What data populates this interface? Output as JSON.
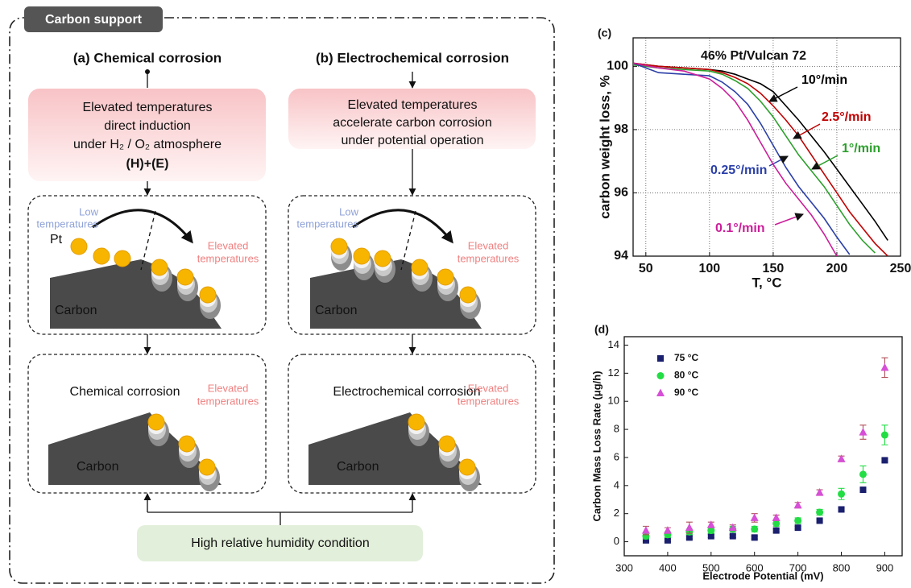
{
  "diagram": {
    "label": "Carbon support",
    "columns": [
      {
        "heading": "(a) Chemical corrosion",
        "condition": [
          "Elevated temperatures",
          "direct induction",
          "under H₂ / O₂ atmosphere",
          "(H)+(E)"
        ],
        "stage1": {
          "low": [
            "Low",
            "temperatures"
          ],
          "pt": "Pt",
          "elevated": [
            "Elevated",
            "temperatures"
          ],
          "carbon": "Carbon"
        },
        "stage2": {
          "title": "Chemical corrosion",
          "elevated": [
            "Elevated",
            "temperatures"
          ],
          "carbon": "Carbon"
        }
      },
      {
        "heading": "(b) Electrochemical corrosion",
        "condition": [
          "Elevated temperatures",
          "accelerate carbon corrosion",
          "under potential operation"
        ],
        "stage1": {
          "low": [
            "Low",
            "temperatures"
          ],
          "elevated": [
            "Elevated",
            "temperatures"
          ],
          "carbon": "Carbon"
        },
        "stage2": {
          "title": "Electrochemical corrosion",
          "elevated": [
            "Elevated",
            "temperatures"
          ],
          "carbon": "Carbon"
        }
      }
    ],
    "humidity": "High relative humidity condition"
  },
  "chart_data": [
    {
      "type": "line",
      "panel_label": "(c)",
      "title": "46% Pt/Vulcan 72",
      "x_label": "T, °C",
      "y_label": "carbon weight loss, %",
      "x": [
        40,
        60,
        80,
        100,
        110,
        120,
        130,
        140,
        150,
        160,
        170,
        180,
        190,
        200,
        210,
        220,
        230,
        240
      ],
      "series": [
        {
          "name": "10°/min",
          "color": "#000000",
          "values": [
            100.1,
            100.0,
            99.95,
            99.9,
            99.85,
            99.75,
            99.6,
            99.45,
            99.2,
            98.75,
            98.3,
            97.8,
            97.3,
            96.75,
            96.2,
            95.65,
            95.1,
            94.5
          ]
        },
        {
          "name": "2.5°/min",
          "color": "#c00000",
          "values": [
            100.1,
            100.0,
            99.95,
            99.9,
            99.8,
            99.65,
            99.45,
            99.15,
            98.75,
            98.3,
            97.8,
            97.2,
            96.6,
            96.0,
            95.4,
            94.9,
            94.4,
            94.0
          ]
        },
        {
          "name": "1°/min",
          "color": "#2ca02c",
          "values": [
            100.05,
            99.95,
            99.9,
            99.85,
            99.75,
            99.55,
            99.3,
            98.9,
            98.4,
            97.8,
            97.2,
            96.7,
            96.2,
            95.6,
            95.0,
            94.5,
            94.1,
            null
          ]
        },
        {
          "name": "0.25°/min",
          "color": "#2b3fa8",
          "values": [
            100.1,
            99.8,
            99.75,
            99.7,
            99.5,
            99.2,
            98.8,
            98.2,
            97.5,
            96.8,
            96.2,
            95.7,
            95.2,
            94.6,
            94.05,
            null,
            null,
            null
          ]
        },
        {
          "name": "0.1°/min",
          "color": "#cc1d9a",
          "values": [
            100.1,
            99.95,
            99.85,
            99.6,
            99.3,
            98.9,
            98.3,
            97.6,
            96.9,
            96.3,
            95.8,
            95.3,
            94.7,
            94.0,
            null,
            null,
            null,
            null
          ]
        }
      ],
      "xlim": [
        40,
        250
      ],
      "ylim": [
        94,
        100.9
      ],
      "xticks": [
        50,
        100,
        150,
        200,
        250
      ],
      "yticks": [
        94,
        96,
        98,
        100
      ],
      "grid": true
    },
    {
      "type": "scatter",
      "panel_label": "(d)",
      "x_label": "Electrode Potential (mV)",
      "y_label": "Carbon Mass Loss Rate (μg/h)",
      "x": [
        350,
        400,
        450,
        500,
        550,
        600,
        650,
        700,
        750,
        800,
        850,
        900
      ],
      "series": [
        {
          "name": "75 °C",
          "color": "#1a1f6e",
          "marker": "square",
          "values": [
            0.1,
            0.1,
            0.3,
            0.4,
            0.4,
            0.3,
            0.8,
            1.0,
            1.5,
            2.3,
            3.7,
            5.8
          ],
          "errors": [
            0.1,
            0.1,
            0.1,
            0.1,
            0.1,
            0.1,
            0.1,
            0.1,
            0.1,
            0.1,
            0.1,
            0.1
          ]
        },
        {
          "name": "80 °C",
          "color": "#22dd44",
          "marker": "circle",
          "values": [
            0.4,
            0.5,
            0.7,
            0.8,
            0.9,
            0.9,
            1.3,
            1.5,
            2.1,
            3.4,
            4.8,
            7.6
          ],
          "errors": [
            0.2,
            0.2,
            0.2,
            0.2,
            0.2,
            0.2,
            0.2,
            0.2,
            0.2,
            0.4,
            0.6,
            0.7
          ]
        },
        {
          "name": "90 °C",
          "color": "#d64fd6",
          "marker": "triangle",
          "values": [
            0.8,
            0.8,
            1.0,
            1.2,
            1.0,
            1.7,
            1.7,
            2.6,
            3.5,
            5.9,
            7.8,
            12.4
          ],
          "errors": [
            0.3,
            0.2,
            0.4,
            0.2,
            0.2,
            0.3,
            0.2,
            0.2,
            0.2,
            0.2,
            0.5,
            0.7
          ]
        }
      ],
      "legend": "upper left",
      "xlim": [
        300,
        940
      ],
      "ylim": [
        -1,
        14.6
      ],
      "xticks": [
        300,
        400,
        500,
        600,
        700,
        800,
        900
      ],
      "yticks": [
        0,
        2,
        4,
        6,
        8,
        10,
        12,
        14
      ]
    }
  ]
}
